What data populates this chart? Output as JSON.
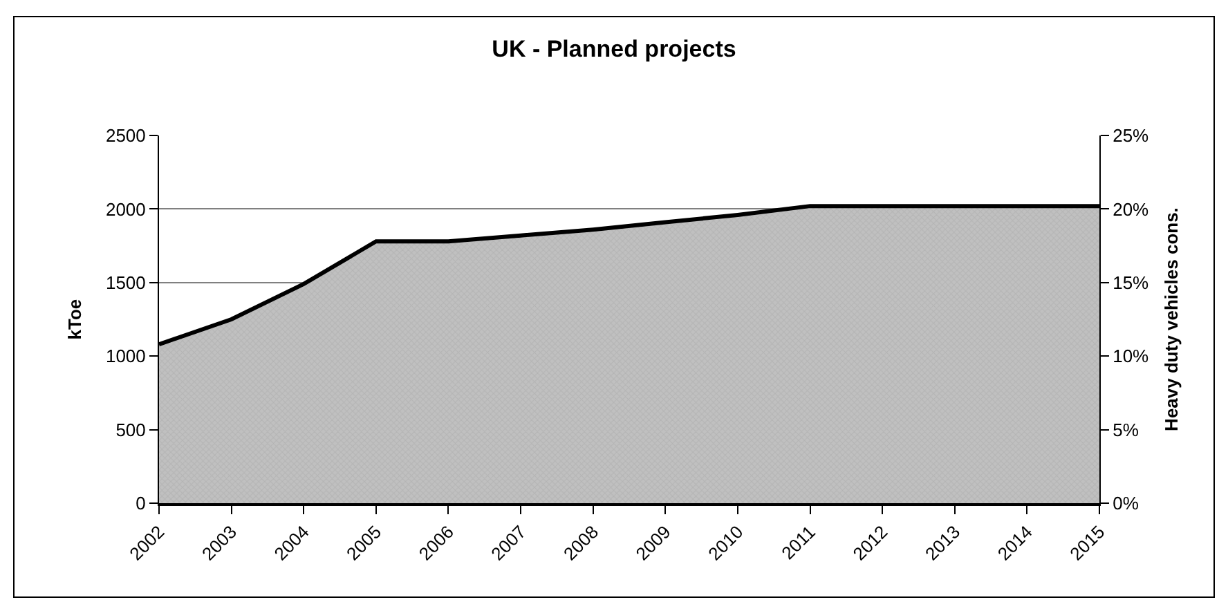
{
  "chart_data": {
    "type": "area",
    "title": "UK - Planned projects",
    "ylabel": "kToe",
    "y2label": "Heavy duty vehicles cons.",
    "x": [
      2002,
      2003,
      2004,
      2005,
      2006,
      2007,
      2008,
      2009,
      2010,
      2011,
      2012,
      2013,
      2014,
      2015
    ],
    "series": [
      {
        "color": "#c0c0c0",
        "values": [
          1080,
          1250,
          1490,
          1780,
          1780,
          1820,
          1860,
          1910,
          1960,
          2020,
          2020,
          2020,
          2020,
          2020
        ]
      }
    ],
    "xlim": [
      2002,
      2015
    ],
    "xticks": [
      2002,
      2003,
      2004,
      2005,
      2006,
      2007,
      2008,
      2009,
      2010,
      2011,
      2012,
      2013,
      2014,
      2015
    ],
    "ylim": [
      0,
      2500
    ],
    "yticks": [
      0,
      500,
      1000,
      1500,
      2000,
      2500
    ],
    "y2lim": [
      0,
      25
    ],
    "y2ticks": [
      {
        "value": 0,
        "label": "0%"
      },
      {
        "value": 5,
        "label": "5%"
      },
      {
        "value": 10,
        "label": "10%"
      },
      {
        "value": 15,
        "label": "15%"
      },
      {
        "value": 20,
        "label": "20%"
      },
      {
        "value": 25,
        "label": "25%"
      }
    ],
    "grid": "y"
  }
}
